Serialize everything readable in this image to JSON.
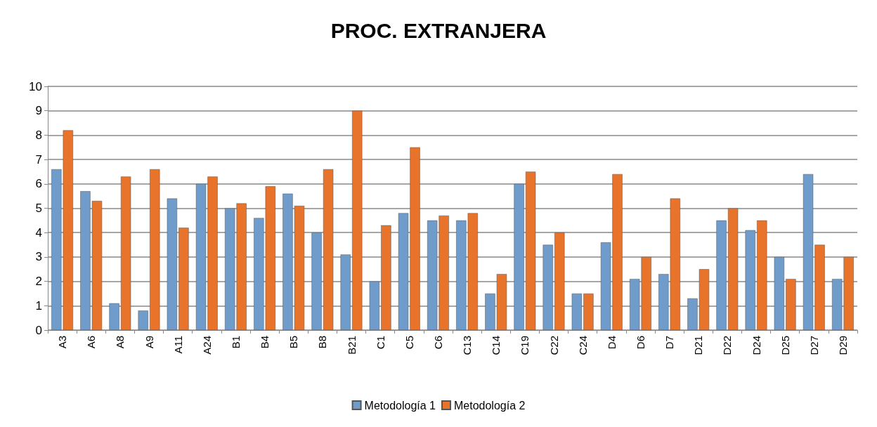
{
  "chart_data": {
    "type": "bar",
    "title": "PROC. EXTRANJERA",
    "categories": [
      "A3",
      "A6",
      "A8",
      "A9",
      "A11",
      "A24",
      "B1",
      "B4",
      "B5",
      "B8",
      "B21",
      "C1",
      "C5",
      "C6",
      "C13",
      "C14",
      "C19",
      "C22",
      "C24",
      "D4",
      "D6",
      "D7",
      "D21",
      "D22",
      "D24",
      "D25",
      "D27",
      "D29"
    ],
    "series": [
      {
        "name": "Metodología 1",
        "color": "#6f9ccb",
        "values": [
          6.6,
          5.7,
          1.1,
          0.8,
          5.4,
          6.0,
          5.0,
          4.6,
          5.6,
          4.0,
          3.1,
          2.0,
          4.8,
          4.5,
          4.5,
          1.5,
          6.0,
          3.5,
          1.5,
          3.6,
          2.1,
          2.3,
          1.3,
          4.5,
          4.1,
          3.0,
          6.4,
          2.1
        ]
      },
      {
        "name": "Metodología 2",
        "color": "#e8732a",
        "values": [
          8.2,
          5.3,
          6.3,
          6.6,
          4.2,
          6.3,
          5.2,
          5.9,
          5.1,
          6.6,
          9.0,
          4.3,
          7.5,
          4.7,
          4.8,
          2.3,
          6.5,
          4.0,
          1.5,
          6.4,
          3.0,
          5.4,
          2.5,
          5.0,
          4.5,
          2.1,
          3.5,
          3.0
        ]
      }
    ],
    "ylim": [
      0,
      10
    ],
    "yticks": [
      0,
      1,
      2,
      3,
      4,
      5,
      6,
      7,
      8,
      9,
      10
    ],
    "grid": "y",
    "legend": "bottom"
  }
}
